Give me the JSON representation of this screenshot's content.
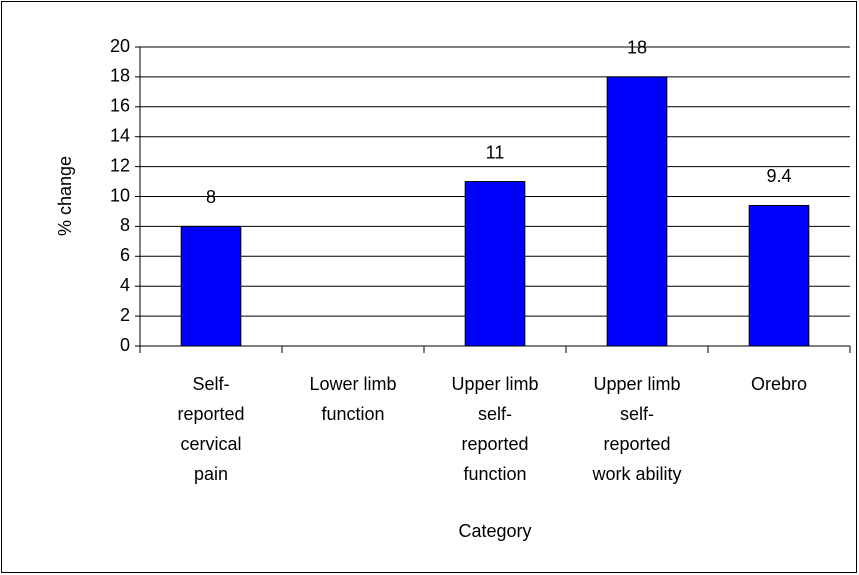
{
  "chart_data": {
    "type": "bar",
    "categories": [
      "Self-reported cervical pain",
      "Lower limb function",
      "Upper limb self-reported function",
      "Upper limb self-reported work ability",
      "Orebro"
    ],
    "values": [
      8,
      null,
      11,
      18,
      9.4
    ],
    "color": "#0000ff",
    "x_label": "Category",
    "y_label": "% change",
    "ylim": [
      0,
      20
    ],
    "yticks": [
      0,
      2,
      4,
      6,
      8,
      10,
      12,
      14,
      16,
      18,
      20
    ],
    "grid": true,
    "value_labels_shown": true
  }
}
